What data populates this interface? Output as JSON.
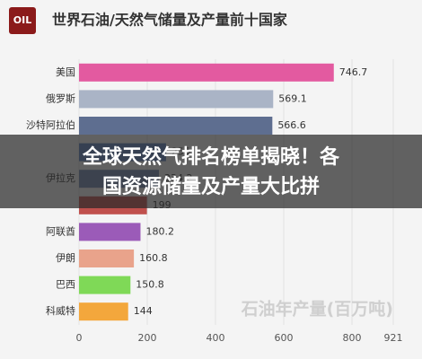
{
  "logo": "OIL",
  "chart_data": {
    "type": "barh",
    "title": "世界石油/天然气储量及产量前十国家",
    "x_label": "石油年产量(百万吨)",
    "categories": [
      "美国",
      "俄罗斯",
      "沙特阿拉伯",
      null,
      "伊拉克",
      null,
      "阿联酋",
      "伊朗",
      "巴西",
      "科威特"
    ],
    "values": [
      746.7,
      569.1,
      566.6,
      255,
      234.2,
      199,
      180.2,
      160.8,
      150.8,
      144
    ],
    "colors": [
      "#e35aa0",
      "#aab4c6",
      "#5e6e90",
      "#5b7dbd",
      "#6f86b0",
      "#c0504d",
      "#9b5bb8",
      "#e9a38b",
      "#7fd957",
      "#f3a73c"
    ],
    "xlim": [
      0,
      921
    ],
    "xticks": [
      0,
      200,
      400,
      600,
      800,
      921
    ],
    "grid": true
  },
  "overlay": {
    "lines": [
      "全球天然气排名榜单揭晓！各",
      "国资源储量及产量大比拼"
    ]
  }
}
